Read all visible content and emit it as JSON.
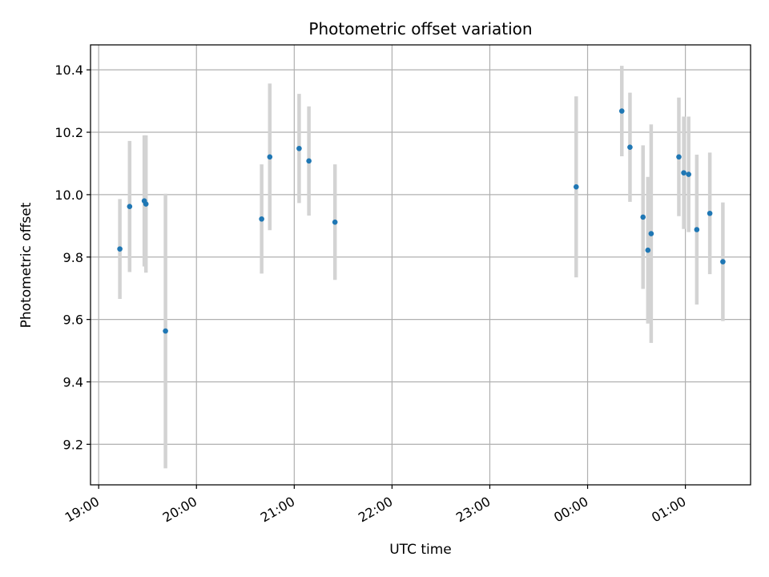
{
  "chart_data": {
    "type": "scatter",
    "title": "Photometric offset variation",
    "xlabel": "UTC time",
    "ylabel": "Photometric offset",
    "x_ticks": [
      "19:00",
      "20:00",
      "21:00",
      "22:00",
      "23:00",
      "00:00",
      "01:00"
    ],
    "y_ticks": [
      "9.2",
      "9.4",
      "9.6",
      "9.8",
      "10.0",
      "10.2",
      "10.4"
    ],
    "xlim": [
      "18:55",
      "01:40"
    ],
    "ylim": [
      9.07,
      10.48
    ],
    "grid": true,
    "colors": {
      "point": "#1f77b4",
      "errorbar": "#d3d3d3",
      "grid": "#b0b0b0"
    },
    "series": [
      {
        "points": [
          {
            "x": "19:13",
            "y": 9.826,
            "yerr": 0.16
          },
          {
            "x": "19:19",
            "y": 9.962,
            "yerr": 0.21
          },
          {
            "x": "19:28",
            "y": 9.98,
            "yerr": 0.21
          },
          {
            "x": "19:29",
            "y": 9.97,
            "yerr": 0.22
          },
          {
            "x": "19:41",
            "y": 9.563,
            "yerr": 0.44
          },
          {
            "x": "20:40",
            "y": 9.922,
            "yerr": 0.175
          },
          {
            "x": "20:45",
            "y": 10.121,
            "yerr": 0.235
          },
          {
            "x": "21:03",
            "y": 10.148,
            "yerr": 0.175
          },
          {
            "x": "21:09",
            "y": 10.108,
            "yerr": 0.175
          },
          {
            "x": "21:25",
            "y": 9.912,
            "yerr": 0.185
          },
          {
            "x": "23:53",
            "y": 10.025,
            "yerr": 0.29
          },
          {
            "x": "00:21",
            "y": 10.268,
            "yerr": 0.145
          },
          {
            "x": "00:26",
            "y": 10.152,
            "yerr": 0.175
          },
          {
            "x": "00:34",
            "y": 9.928,
            "yerr": 0.23
          },
          {
            "x": "00:37",
            "y": 9.822,
            "yerr": 0.235
          },
          {
            "x": "00:39",
            "y": 9.875,
            "yerr": 0.35
          },
          {
            "x": "00:56",
            "y": 10.121,
            "yerr": 0.19
          },
          {
            "x": "00:59",
            "y": 10.07,
            "yerr": 0.18
          },
          {
            "x": "01:02",
            "y": 10.065,
            "yerr": 0.185
          },
          {
            "x": "01:07",
            "y": 9.888,
            "yerr": 0.24
          },
          {
            "x": "01:15",
            "y": 9.94,
            "yerr": 0.195
          },
          {
            "x": "01:23",
            "y": 9.785,
            "yerr": 0.19
          }
        ]
      }
    ]
  }
}
